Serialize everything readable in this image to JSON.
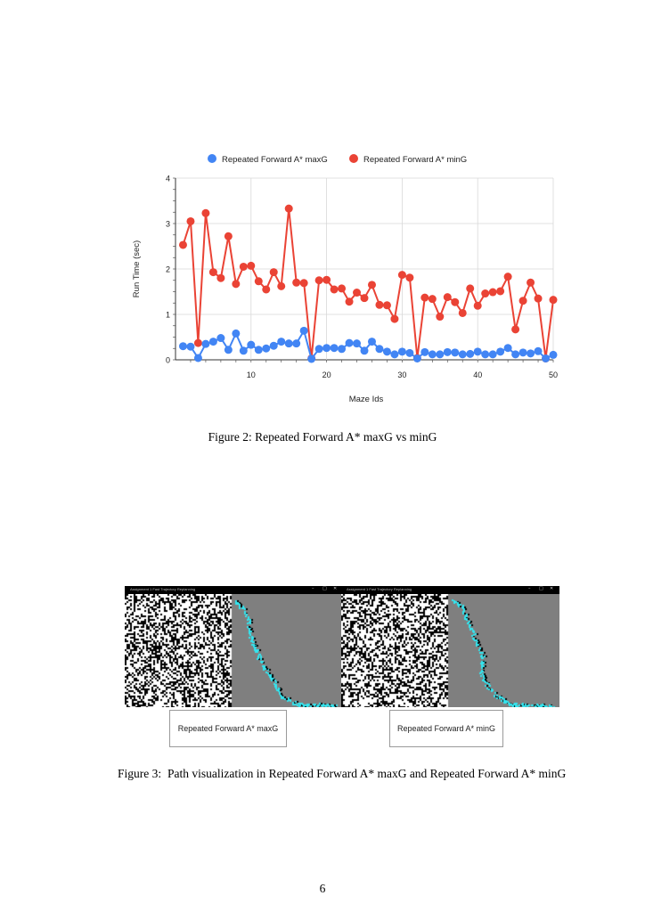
{
  "figure2": {
    "caption": "Figure 2: Repeated Forward A* maxG vs minG",
    "chart_data": {
      "type": "line",
      "title": "",
      "xlabel": "Maze Ids",
      "ylabel": "Run Time (sec)",
      "xlim": [
        0,
        50
      ],
      "ylim": [
        0,
        4
      ],
      "xticks": [
        10,
        20,
        30,
        40,
        50
      ],
      "yticks": [
        0,
        1,
        2,
        3,
        4
      ],
      "grid": true,
      "legend_position": "top",
      "x": [
        1,
        2,
        3,
        4,
        5,
        6,
        7,
        8,
        9,
        10,
        11,
        12,
        13,
        14,
        15,
        16,
        17,
        18,
        19,
        20,
        21,
        22,
        23,
        24,
        25,
        26,
        27,
        28,
        29,
        30,
        31,
        32,
        33,
        34,
        35,
        36,
        37,
        38,
        39,
        40,
        41,
        42,
        43,
        44,
        45,
        46,
        47,
        48,
        49,
        50
      ],
      "series": [
        {
          "name": "Repeated Forward A* maxG",
          "color": "#4285f4",
          "values": [
            0.3,
            0.29,
            0.04,
            0.35,
            0.4,
            0.48,
            0.22,
            0.58,
            0.2,
            0.33,
            0.22,
            0.25,
            0.31,
            0.4,
            0.36,
            0.36,
            0.64,
            0.02,
            0.24,
            0.26,
            0.26,
            0.24,
            0.37,
            0.36,
            0.2,
            0.4,
            0.24,
            0.18,
            0.12,
            0.18,
            0.15,
            0.03,
            0.17,
            0.12,
            0.12,
            0.17,
            0.16,
            0.12,
            0.13,
            0.18,
            0.12,
            0.12,
            0.18,
            0.26,
            0.12,
            0.16,
            0.14,
            0.19,
            0.03,
            0.11
          ]
        },
        {
          "name": "Repeated Forward A* minG",
          "color": "#ea4335",
          "values": [
            2.53,
            3.05,
            0.37,
            3.23,
            1.93,
            1.8,
            2.72,
            1.67,
            2.05,
            2.07,
            1.73,
            1.55,
            1.93,
            1.62,
            3.33,
            1.7,
            1.69,
            0.03,
            1.75,
            1.76,
            1.55,
            1.57,
            1.28,
            1.48,
            1.36,
            1.65,
            1.21,
            1.2,
            0.9,
            1.87,
            1.81,
            0.04,
            1.37,
            1.34,
            0.95,
            1.38,
            1.27,
            1.03,
            1.57,
            1.19,
            1.46,
            1.49,
            1.51,
            1.83,
            0.67,
            1.3,
            1.7,
            1.35,
            0.03,
            1.32
          ]
        }
      ]
    }
  },
  "figure3": {
    "number": "Figure 3:",
    "caption": "Path visualization in Repeated Forward A* maxG and Repeated Forward A* minG",
    "panels": [
      {
        "window_title": "Assignment 1 Fast Trajectory Replanning",
        "label": "Repeated Forward A* maxG"
      },
      {
        "window_title": "Assignment 1 Fast Trajectory Replanning",
        "label": "Repeated Forward A* minG"
      }
    ],
    "window_controls": [
      "–",
      "□",
      "✕"
    ],
    "colors": {
      "obstacle": "#000000",
      "free": "#ffffff",
      "unexplored": "#7f7f7f",
      "path": "#33e6f0"
    }
  },
  "page_number": "6"
}
